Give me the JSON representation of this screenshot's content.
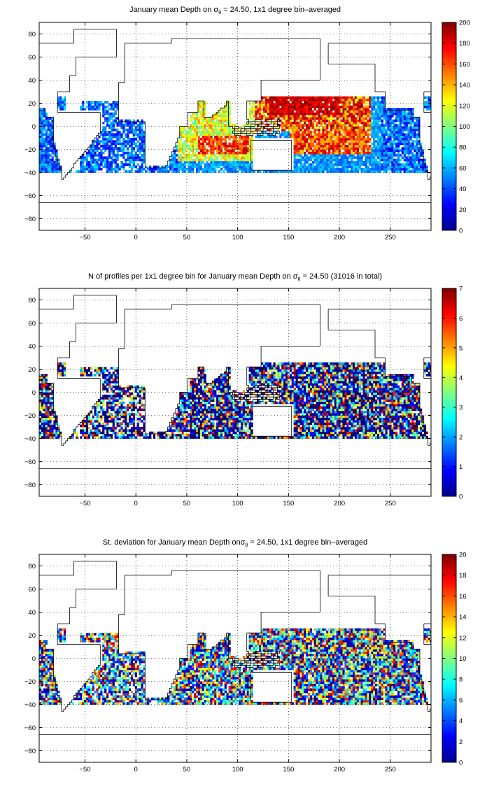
{
  "colors": {
    "colormap": "jet",
    "coast": "#000000",
    "grid": "#000000",
    "background": "#ffffff"
  },
  "chart_data": [
    {
      "type": "heatmap",
      "title_prefix": "January mean Depth on ",
      "title_suffix": " = 24.50, 1x1 degree bin–averaged",
      "sigma_sub": "θ",
      "xlim": [
        -95,
        290
      ],
      "ylim": [
        -90,
        90
      ],
      "x_ticks": [
        -50,
        0,
        50,
        100,
        150,
        200,
        250
      ],
      "y_ticks": [
        -80,
        -60,
        -40,
        -20,
        0,
        20,
        40,
        60,
        80
      ],
      "colorbar": {
        "min": 0,
        "max": 200,
        "ticks": [
          0,
          20,
          40,
          60,
          80,
          100,
          120,
          140,
          160,
          180,
          200
        ]
      },
      "grid": true
    },
    {
      "type": "heatmap",
      "title_prefix": "N of profiles per 1x1 degree bin for January mean Depth on ",
      "title_suffix": " = 24.50 (31016 in total)",
      "sigma_sub": "θ",
      "xlim": [
        -95,
        290
      ],
      "ylim": [
        -90,
        90
      ],
      "x_ticks": [
        -50,
        0,
        50,
        100,
        150,
        200,
        250
      ],
      "y_ticks": [
        -80,
        -60,
        -40,
        -20,
        0,
        20,
        40,
        60,
        80
      ],
      "colorbar": {
        "min": 0,
        "max": 7,
        "ticks": [
          0,
          1,
          2,
          3,
          4,
          5,
          6,
          7
        ]
      },
      "grid": true
    },
    {
      "type": "heatmap",
      "title_prefix": "St. deviation for January mean Depth on",
      "title_suffix": " = 24.50, 1x1 degree bin–averaged",
      "sigma_sub": "θ",
      "xlim": [
        -95,
        290
      ],
      "ylim": [
        -90,
        90
      ],
      "x_ticks": [
        -50,
        0,
        50,
        100,
        150,
        200,
        250
      ],
      "y_ticks": [
        -80,
        -60,
        -40,
        -20,
        0,
        20,
        40,
        60,
        80
      ],
      "colorbar": {
        "min": 0,
        "max": 20,
        "ticks": [
          0,
          2,
          4,
          6,
          8,
          10,
          12,
          14,
          16,
          18,
          20
        ]
      },
      "grid": true
    }
  ]
}
